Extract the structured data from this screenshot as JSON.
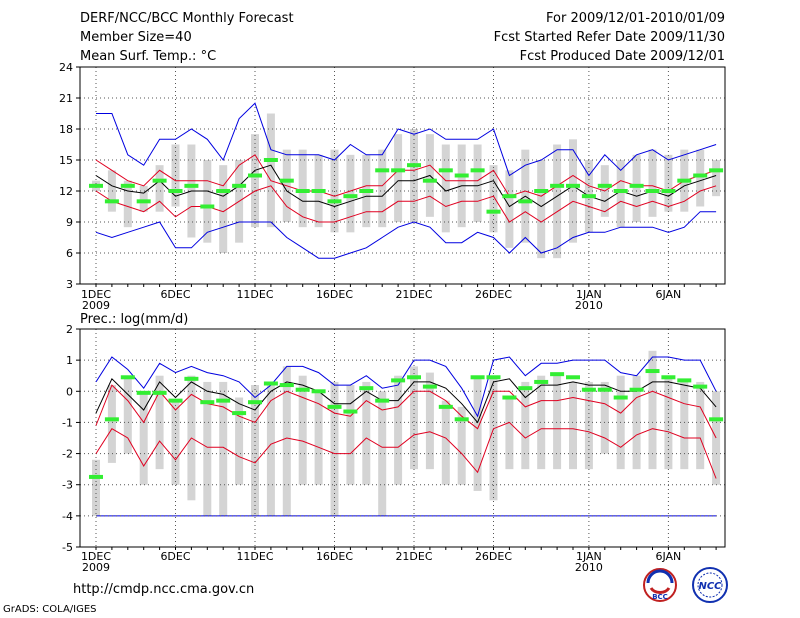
{
  "header": {
    "left": [
      "DERF/NCC/BCC Monthly Forecast",
      "Member Size=40",
      "Mean Surf. Temp.: °C"
    ],
    "right": [
      "For 2009/12/01-2010/01/09",
      "Fcst Started Refer Date 2009/11/30",
      "Fcst Produced Date 2009/12/01"
    ]
  },
  "footer": {
    "url": "http://cmdp.ncc.cma.gov.cn",
    "credit": "GrADS: COLA/IGES"
  },
  "logos": {
    "bcc": "BCC",
    "ncc": "NCC"
  },
  "colors": {
    "envelope": "#0000e0",
    "spread": "#e00020",
    "mean": "#000000",
    "observed": "#33ee33",
    "bar": "#d4d4d4",
    "grid": "#555555"
  },
  "chart_data": [
    {
      "type": "line",
      "title": "Mean Surf. Temp.: °C",
      "ylim": [
        3,
        24
      ],
      "yticks": [
        3,
        6,
        9,
        12,
        15,
        18,
        21,
        24
      ],
      "xtick_labels": [
        {
          "day": 1,
          "label": "1DEC",
          "sub": "2009"
        },
        {
          "day": 6,
          "label": "6DEC"
        },
        {
          "day": 11,
          "label": "11DEC"
        },
        {
          "day": 16,
          "label": "16DEC"
        },
        {
          "day": 21,
          "label": "21DEC"
        },
        {
          "day": 26,
          "label": "26DEC"
        },
        {
          "day": 32,
          "label": "1JAN",
          "sub": "2010"
        },
        {
          "day": 37,
          "label": "6JAN"
        }
      ],
      "days": 40,
      "box_low": [
        12,
        10,
        8.5,
        10,
        10,
        10.5,
        7.5,
        7,
        6,
        7,
        8.5,
        8.5,
        9,
        8.5,
        8.5,
        8,
        8,
        8.5,
        8.5,
        9,
        9,
        9.5,
        8,
        8.5,
        9,
        8,
        6.5,
        7,
        5.5,
        5.5,
        7,
        8,
        9.5,
        8.5,
        9,
        9.5,
        10,
        10,
        10.5,
        11.5
      ],
      "box_high": [
        13,
        14,
        13,
        12.5,
        14.5,
        16.5,
        16.5,
        15,
        14.5,
        15,
        17.5,
        19.5,
        16,
        16,
        15.5,
        16,
        15.5,
        15.5,
        16,
        17.5,
        18,
        17.5,
        16.5,
        16.5,
        16.5,
        14.5,
        14,
        16,
        15,
        16.5,
        17,
        15,
        14.5,
        15,
        15.5,
        16,
        15.5,
        16,
        16,
        15
      ],
      "observed": [
        12.5,
        11,
        12.5,
        11,
        13,
        12,
        12.5,
        10.5,
        12,
        12.5,
        13.5,
        15,
        13,
        12,
        12,
        11,
        11.5,
        12,
        14,
        14,
        14.5,
        13,
        14,
        13.5,
        14,
        10,
        11.5,
        11,
        12,
        12.5,
        12.5,
        11.5,
        12.5,
        12,
        12.5,
        12,
        12,
        13,
        13.5,
        14
      ],
      "series": [
        {
          "name": "ensemble max",
          "color": "#0000e0",
          "values": [
            19.5,
            19.5,
            15.5,
            14.5,
            17,
            17,
            18,
            17,
            15,
            19,
            20.5,
            16,
            15.5,
            15.5,
            15.5,
            15,
            16.5,
            15.5,
            15.5,
            18,
            17.5,
            18,
            17,
            17,
            17,
            18,
            13.5,
            14.5,
            15,
            16,
            16,
            13.5,
            15.5,
            14,
            15.5,
            16,
            15,
            15.5,
            16,
            16.5
          ]
        },
        {
          "name": "upper spread",
          "color": "#e00020",
          "values": [
            15,
            14,
            13,
            12.5,
            14,
            13,
            13,
            13,
            12.5,
            14.5,
            15.5,
            13,
            12.5,
            12,
            12,
            11.5,
            12,
            12.5,
            12.5,
            14,
            14,
            14.5,
            13,
            13,
            13,
            14,
            11.5,
            12,
            11.5,
            12.5,
            13.5,
            12.5,
            12,
            13,
            12.5,
            12.5,
            12,
            13,
            13.5,
            14
          ]
        },
        {
          "name": "ensemble mean",
          "color": "#000000",
          "values": [
            13.5,
            12.5,
            12,
            11.8,
            13,
            11.5,
            12,
            12,
            11.5,
            12.5,
            14,
            14.5,
            12,
            11,
            11,
            10.5,
            11,
            11.5,
            11.5,
            13,
            13,
            13.5,
            12,
            12.5,
            12.5,
            13,
            10.5,
            11.5,
            10.5,
            11.5,
            12.5,
            11.5,
            11,
            12,
            11.5,
            12,
            11.5,
            12.5,
            13,
            13.5
          ]
        },
        {
          "name": "lower spread",
          "color": "#e00020",
          "values": [
            12,
            11,
            10.5,
            10,
            11,
            9.5,
            10.5,
            10.5,
            10,
            11,
            12,
            12.5,
            10.5,
            9.5,
            9,
            9,
            9.5,
            10,
            10,
            11,
            11,
            11.5,
            10.5,
            11,
            11,
            11.5,
            9,
            10,
            9,
            10,
            11,
            10.5,
            10,
            11,
            10.5,
            11,
            10.5,
            11,
            12,
            12.5
          ]
        },
        {
          "name": "ensemble min",
          "color": "#0000e0",
          "values": [
            8,
            7.5,
            8,
            8.5,
            9,
            6.5,
            6.5,
            8,
            8.5,
            9,
            9,
            9,
            7.5,
            6.5,
            5.5,
            5.5,
            6,
            6.5,
            7.5,
            8.5,
            9,
            8.5,
            7,
            7,
            8,
            7.5,
            6,
            7.5,
            6,
            6.5,
            7.5,
            8,
            8,
            8.5,
            8.5,
            8.5,
            8,
            8.5,
            10,
            10
          ]
        }
      ]
    },
    {
      "type": "line",
      "title": "Prec.: log(mm/d)",
      "ylim": [
        -5,
        2
      ],
      "yticks": [
        -5,
        -4,
        -3,
        -2,
        -1,
        0,
        1,
        2
      ],
      "xtick_labels": [
        {
          "day": 1,
          "label": "1DEC",
          "sub": "2009"
        },
        {
          "day": 6,
          "label": "6DEC"
        },
        {
          "day": 11,
          "label": "11DEC"
        },
        {
          "day": 16,
          "label": "16DEC"
        },
        {
          "day": 21,
          "label": "21DEC"
        },
        {
          "day": 26,
          "label": "26DEC"
        },
        {
          "day": 32,
          "label": "1JAN",
          "sub": "2010"
        },
        {
          "day": 37,
          "label": "6JAN"
        }
      ],
      "days": 40,
      "baseline": -4,
      "box_low": [
        -4,
        -2.3,
        -2,
        -3,
        -2.5,
        -3,
        -3.5,
        -4,
        -4,
        -3,
        -4,
        -4,
        -4,
        -3,
        -3,
        -4,
        -3,
        -3,
        -4,
        -3,
        -2.5,
        -2.5,
        -3,
        -3,
        -3.2,
        -3.5,
        -2.5,
        -2.5,
        -2.5,
        -2.5,
        -2.5,
        -2.5,
        -2,
        -2.5,
        -2.5,
        -2.5,
        -2.5,
        -2.5,
        -2.5,
        -3
      ],
      "box_high": [
        -2.2,
        0.2,
        0.5,
        0,
        0.5,
        -0.3,
        0.5,
        0.3,
        0.3,
        -0.2,
        0.2,
        0.3,
        0.8,
        0.5,
        0,
        0.3,
        0.2,
        0.3,
        0,
        0.5,
        0.8,
        0.6,
        -0.3,
        -0.5,
        0.4,
        0.5,
        -0.2,
        0.3,
        0.5,
        0.5,
        0.3,
        0.3,
        0.3,
        0.5,
        0.5,
        1.3,
        0.5,
        0.3,
        0.3,
        0
      ],
      "observed": [
        -2.75,
        -0.9,
        0.45,
        -0.05,
        -0.05,
        -0.3,
        0.4,
        -0.35,
        -0.3,
        -0.7,
        -0.35,
        0.25,
        0.2,
        0.05,
        0.0,
        -0.5,
        -0.65,
        0.1,
        -0.3,
        0.35,
        0.45,
        0.15,
        -0.5,
        -0.9,
        0.45,
        0.45,
        -0.2,
        0.1,
        0.3,
        0.55,
        0.45,
        0.05,
        0.05,
        -0.2,
        0.05,
        0.65,
        0.45,
        0.35,
        0.15,
        -0.9
      ],
      "series": [
        {
          "name": "ensemble max",
          "color": "#0000e0",
          "values": [
            0.3,
            1.1,
            0.7,
            0.1,
            0.9,
            0.6,
            0.8,
            0.6,
            0.5,
            0.3,
            -0.2,
            0.2,
            0.8,
            0.8,
            0.6,
            0.2,
            0.2,
            0.5,
            0.1,
            0.2,
            1.0,
            1.0,
            0.8,
            0.1,
            -0.8,
            1.0,
            1.1,
            0.5,
            0.9,
            0.9,
            1.0,
            1.0,
            1.0,
            0.6,
            0.5,
            1.1,
            1.1,
            1.0,
            1.0,
            0.0
          ]
        },
        {
          "name": "upper spread",
          "color": "#e00020",
          "values": [
            -1.1,
            0.2,
            -0.3,
            -1.0,
            0.0,
            -0.6,
            -0.1,
            -0.4,
            -0.5,
            -0.8,
            -1.0,
            -0.3,
            0.0,
            -0.2,
            -0.4,
            -0.7,
            -0.8,
            -0.3,
            -0.6,
            -0.5,
            0.0,
            0.0,
            -0.3,
            -0.8,
            -1.2,
            0.0,
            0.0,
            -0.5,
            -0.3,
            -0.3,
            -0.2,
            -0.3,
            -0.4,
            -0.7,
            -0.2,
            0.0,
            -0.2,
            -0.4,
            -0.5,
            -1.5
          ]
        },
        {
          "name": "ensemble mean",
          "color": "#000000",
          "values": [
            -0.7,
            0.4,
            -0.1,
            -0.6,
            0.3,
            -0.2,
            0.3,
            0.0,
            -0.1,
            -0.4,
            -0.6,
            0.0,
            0.3,
            0.2,
            0.0,
            -0.4,
            -0.4,
            0.0,
            -0.3,
            -0.3,
            0.3,
            0.3,
            0.1,
            -0.4,
            -1.0,
            0.3,
            0.4,
            -0.2,
            0.2,
            0.2,
            0.3,
            0.2,
            0.2,
            0.0,
            0.0,
            0.3,
            0.3,
            0.2,
            0.1,
            -0.5
          ]
        },
        {
          "name": "lower spread",
          "color": "#e00020",
          "values": [
            -2.0,
            -1.2,
            -1.5,
            -2.4,
            -1.6,
            -2.2,
            -1.5,
            -1.8,
            -1.8,
            -2.1,
            -2.3,
            -1.7,
            -1.5,
            -1.6,
            -1.8,
            -2.0,
            -2.0,
            -1.5,
            -1.8,
            -1.8,
            -1.4,
            -1.3,
            -1.5,
            -2.0,
            -2.6,
            -1.2,
            -1.0,
            -1.5,
            -1.2,
            -1.2,
            -1.2,
            -1.3,
            -1.5,
            -1.8,
            -1.4,
            -1.2,
            -1.3,
            -1.5,
            -1.5,
            -2.8
          ]
        }
      ]
    }
  ]
}
